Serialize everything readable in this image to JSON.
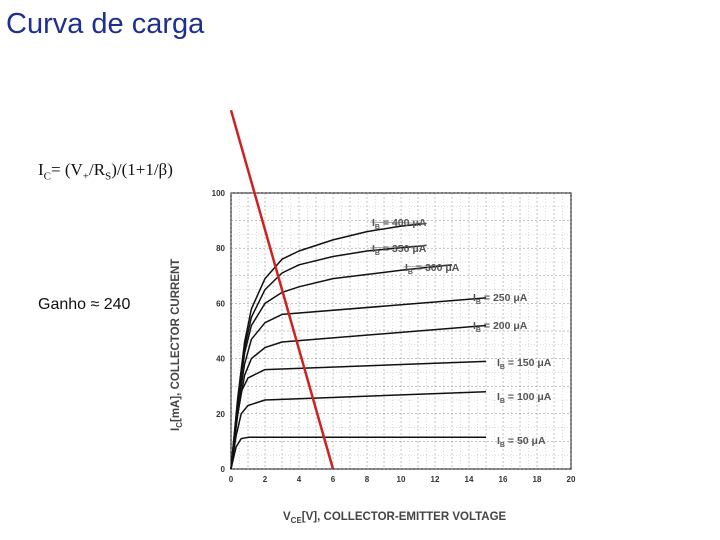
{
  "slide": {
    "title": "Curva de carga",
    "formula": {
      "lhs": "I",
      "lhs_sub": "C",
      "eq": "= (V",
      "v_sub": "+",
      "mid": "/R",
      "r_sub": "S",
      "rest": ")/(1+1/β)"
    },
    "gain": "Ganho ≈ 240"
  },
  "chart_data": {
    "type": "line",
    "xlabel": "V_CE[V], COLLECTOR-EMITTER VOLTAGE",
    "xlabel_main": "V",
    "xlabel_sub": "CE",
    "xlabel_rest": "[V], COLLECTOR-EMITTER VOLTAGE",
    "ylabel": "I_C[mA], COLLECTOR CURRENT",
    "ylabel_main": "I",
    "ylabel_sub": "C",
    "ylabel_rest": "[mA], COLLECTOR CURRENT",
    "xlim": [
      0,
      20
    ],
    "ylim": [
      0,
      100
    ],
    "xticks": [
      "0",
      "2",
      "4",
      "6",
      "8",
      "10",
      "12",
      "14",
      "16",
      "18",
      "20"
    ],
    "yticks": [
      "0",
      "20",
      "40",
      "60",
      "80",
      "100"
    ],
    "grid": true,
    "series": [
      {
        "name": "I_B = 50 μA",
        "label_main": "I",
        "label_sub": "B",
        "label_rest": " = 50  μA",
        "x": [
          0,
          0.3,
          0.6,
          1,
          15
        ],
        "y": [
          0,
          8,
          11,
          11.5,
          11.5
        ]
      },
      {
        "name": "I_B = 100 μA",
        "label_main": "I",
        "label_sub": "B",
        "label_rest": " = 100  μA",
        "x": [
          0,
          0.3,
          0.6,
          1,
          2,
          15
        ],
        "y": [
          0,
          12,
          20,
          23,
          25,
          28
        ]
      },
      {
        "name": "I_B = 150 μA",
        "label_main": "I",
        "label_sub": "B",
        "label_rest": " = 150  μA",
        "x": [
          0,
          0.3,
          0.6,
          1,
          2,
          15
        ],
        "y": [
          0,
          16,
          28,
          33,
          36,
          39
        ]
      },
      {
        "name": "I_B = 200 μA",
        "label_main": "I",
        "label_sub": "B",
        "label_rest": " = 200  μA",
        "x": [
          0,
          0.4,
          0.8,
          1.2,
          2,
          3,
          15
        ],
        "y": [
          0,
          20,
          34,
          40,
          44,
          46,
          52
        ]
      },
      {
        "name": "I_B = 250 μA",
        "label_main": "I",
        "label_sub": "B",
        "label_rest": " = 250  μA",
        "x": [
          0,
          0.4,
          0.8,
          1.2,
          2,
          3,
          15
        ],
        "y": [
          0,
          22,
          38,
          47,
          53,
          56,
          62
        ]
      },
      {
        "name": "I_B = 300 μA",
        "label_main": "I",
        "label_sub": "B",
        "label_rest": " = 300  μA",
        "x": [
          0,
          0.4,
          0.8,
          1.2,
          2,
          3,
          4,
          6,
          10,
          13
        ],
        "y": [
          0,
          24,
          42,
          52,
          60,
          64,
          66,
          69,
          72,
          74
        ]
      },
      {
        "name": "I_B = 350 μA",
        "label_main": "I",
        "label_sub": "B",
        "label_rest": " = 350  μA",
        "x": [
          0,
          0.4,
          0.8,
          1.2,
          2,
          3,
          4,
          6,
          8,
          11.5
        ],
        "y": [
          0,
          25,
          44,
          55,
          65,
          71,
          74,
          77,
          79,
          81
        ]
      },
      {
        "name": "I_B = 400 μA",
        "label_main": "I",
        "label_sub": "B",
        "label_rest": " = 400  μA",
        "x": [
          0,
          0.4,
          0.8,
          1.2,
          2,
          3,
          4,
          6,
          8,
          10,
          11.5
        ],
        "y": [
          0,
          26,
          46,
          58,
          69,
          76,
          79,
          83,
          86,
          88,
          89
        ]
      }
    ],
    "load_line": {
      "x": [
        0,
        6
      ],
      "y": [
        130,
        0
      ],
      "color": "#cc2222"
    }
  }
}
